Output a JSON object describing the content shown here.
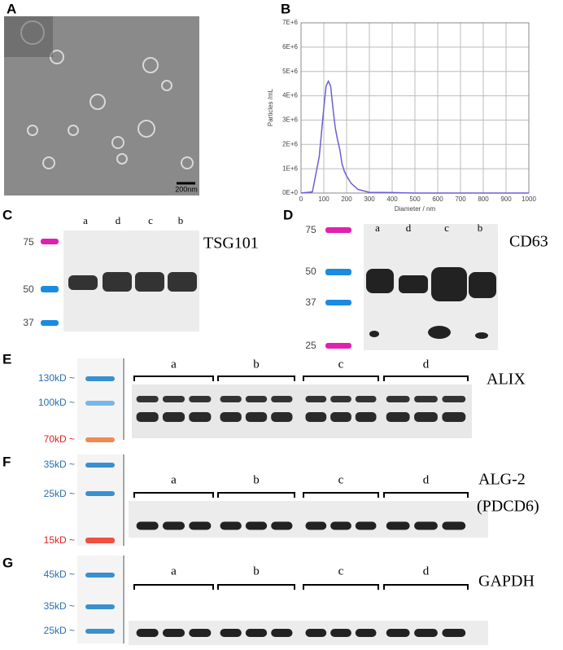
{
  "panel_labels": [
    "A",
    "B",
    "C",
    "D",
    "E",
    "F",
    "G"
  ],
  "A": {
    "scale_bar": "200nm"
  },
  "chart_data": {
    "type": "line",
    "xlabel": "Diameter / nm",
    "ylabel": "Particles /mL",
    "x": [
      0,
      50,
      80,
      100,
      110,
      120,
      130,
      140,
      150,
      160,
      170,
      180,
      190,
      200,
      220,
      250,
      300,
      400,
      500,
      1000
    ],
    "series": [
      {
        "name": "Particles",
        "color": "#6b5fd6",
        "values": [
          0,
          50000,
          1500000,
          3500000,
          4400000,
          4600000,
          4400000,
          3500000,
          2700000,
          2200000,
          1800000,
          1200000,
          900000,
          700000,
          400000,
          150000,
          30000,
          20000,
          0,
          0
        ]
      }
    ],
    "xlim": [
      0,
      1000
    ],
    "xticks": [
      0,
      100,
      200,
      300,
      400,
      500,
      600,
      700,
      800,
      900,
      1000
    ],
    "ylim": [
      0,
      7000000
    ],
    "yticks": [
      {
        "value": 0,
        "label": "0E+0"
      },
      {
        "value": 1000000,
        "label": "1E+6"
      },
      {
        "value": 2000000,
        "label": "2E+6"
      },
      {
        "value": 3000000,
        "label": "3E+6"
      },
      {
        "value": 4000000,
        "label": "4E+6"
      },
      {
        "value": 5000000,
        "label": "5E+6"
      },
      {
        "value": 6000000,
        "label": "6E+6"
      },
      {
        "value": 7000000,
        "label": "7E+6"
      }
    ],
    "grid": true
  },
  "C": {
    "markers": [
      "75",
      "50",
      "37"
    ],
    "lanes": [
      "a",
      "d",
      "c",
      "b"
    ],
    "protein": "TSG101"
  },
  "D": {
    "markers": [
      "75",
      "50",
      "37",
      "25"
    ],
    "lanes": [
      "a",
      "d",
      "c",
      "b"
    ],
    "protein": "CD63"
  },
  "E": {
    "markers": [
      "130kD ~",
      "100kD ~",
      "70kD ~"
    ],
    "groups": [
      "a",
      "b",
      "c",
      "d"
    ],
    "protein": "ALIX"
  },
  "F": {
    "markers": [
      "35kD ~",
      "25kD ~",
      "15kD ~"
    ],
    "groups": [
      "a",
      "b",
      "c",
      "d"
    ],
    "protein": [
      "ALG-2",
      "(PDCD6)"
    ]
  },
  "G": {
    "markers": [
      "45kD ~",
      "35kD ~",
      "25kD ~"
    ],
    "groups": [
      "a",
      "b",
      "c",
      "d"
    ],
    "protein": "GAPDH"
  }
}
